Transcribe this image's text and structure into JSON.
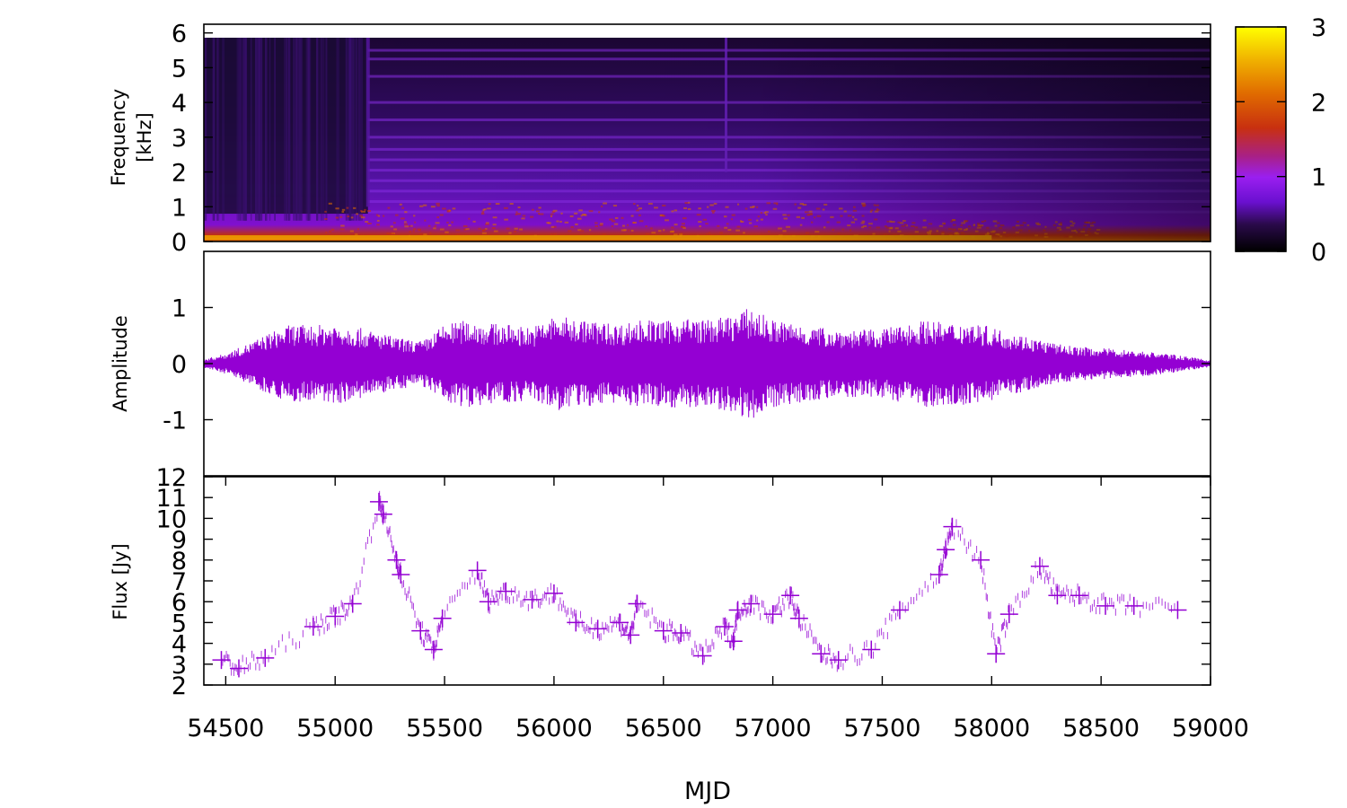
{
  "chart_data": [
    {
      "panel": "spectrogram",
      "type": "heatmap",
      "ylabel_line1": "Frequency",
      "ylabel_line2": "[kHz]",
      "x_range": [
        54400,
        59000
      ],
      "ylim": [
        0,
        6.25
      ],
      "yticks": [
        "0",
        "1",
        "2",
        "3",
        "4",
        "5",
        "6"
      ],
      "colorbar": {
        "range": [
          0,
          3
        ],
        "ticks": [
          "0",
          "1",
          "2",
          "3"
        ],
        "colormap": [
          "#000000",
          "#2a0a4a",
          "#6a10d0",
          "#9a1ff0",
          "#a8208a",
          "#c83010",
          "#e06a00",
          "#f0b000",
          "#ffff00"
        ]
      },
      "harmonic_lines_khz": [
        0.85,
        1.15,
        1.45,
        1.75,
        2.05,
        2.35,
        2.65,
        3.0,
        3.5,
        4.0,
        4.75,
        5.25,
        5.5
      ],
      "onset_mjd": 55150,
      "second_onset_mjd": 56780,
      "grid": false
    },
    {
      "panel": "amplitude",
      "type": "line",
      "ylabel": "Amplitude",
      "x_range": [
        54400,
        59000
      ],
      "ylim": [
        -2,
        2
      ],
      "yticks": [
        "-1",
        "0",
        "1"
      ],
      "color": "#9400d3",
      "envelope": {
        "x": [
          54400,
          54500,
          54600,
          54700,
          54800,
          54900,
          55000,
          55100,
          55200,
          55300,
          55400,
          55500,
          55600,
          55700,
          55800,
          55900,
          56000,
          56100,
          56200,
          56300,
          56400,
          56500,
          56600,
          56700,
          56800,
          56900,
          57000,
          57100,
          57200,
          57300,
          57400,
          57500,
          57600,
          57700,
          57800,
          57900,
          58000,
          58100,
          58200,
          58300,
          58400,
          58500,
          58600,
          58700,
          58800,
          58900,
          59000
        ],
        "y": [
          0.08,
          0.18,
          0.35,
          0.55,
          0.7,
          0.68,
          0.72,
          0.65,
          0.55,
          0.45,
          0.4,
          0.7,
          0.78,
          0.72,
          0.7,
          0.65,
          0.85,
          0.8,
          0.75,
          0.7,
          0.8,
          0.75,
          0.82,
          0.78,
          0.85,
          1.0,
          0.78,
          0.72,
          0.65,
          0.62,
          0.6,
          0.62,
          0.7,
          0.78,
          0.72,
          0.75,
          0.65,
          0.55,
          0.45,
          0.35,
          0.3,
          0.28,
          0.25,
          0.22,
          0.18,
          0.12,
          0.06
        ]
      },
      "grid": false
    },
    {
      "panel": "flux",
      "type": "scatter",
      "ylabel": "Flux [Jy]",
      "xlabel": "MJD",
      "x_range": [
        54400,
        59000
      ],
      "ylim": [
        2,
        12
      ],
      "yticks": [
        "2",
        "3",
        "4",
        "5",
        "6",
        "7",
        "8",
        "9",
        "10",
        "11",
        "12"
      ],
      "xticks": [
        "54500",
        "55000",
        "55500",
        "56000",
        "56500",
        "57000",
        "57500",
        "58000",
        "58500",
        "59000"
      ],
      "color": "#9400d3",
      "points": {
        "x": [
          54480,
          54560,
          54680,
          54900,
          55000,
          55080,
          55200,
          55220,
          55280,
          55300,
          55390,
          55450,
          55490,
          55650,
          55700,
          55780,
          55900,
          56000,
          56100,
          56200,
          56300,
          56350,
          56380,
          56500,
          56580,
          56680,
          56780,
          56820,
          56840,
          56900,
          57000,
          57080,
          57120,
          57220,
          57300,
          57450,
          57580,
          57760,
          57790,
          57820,
          57950,
          58020,
          58080,
          58220,
          58300,
          58400,
          58520,
          58650,
          58850
        ],
        "y": [
          3.2,
          2.8,
          3.3,
          4.8,
          5.3,
          5.9,
          10.8,
          10.2,
          8.0,
          7.3,
          4.6,
          3.7,
          5.2,
          7.5,
          6.0,
          6.5,
          6.1,
          6.4,
          5.0,
          4.7,
          5.0,
          4.4,
          5.9,
          4.6,
          4.5,
          3.4,
          4.8,
          4.1,
          5.6,
          5.9,
          5.4,
          6.3,
          5.2,
          3.5,
          3.2,
          3.7,
          5.6,
          7.3,
          8.5,
          9.6,
          8.0,
          3.5,
          5.4,
          7.7,
          6.3,
          6.3,
          5.8,
          5.8,
          5.6
        ]
      },
      "grid": false
    }
  ]
}
